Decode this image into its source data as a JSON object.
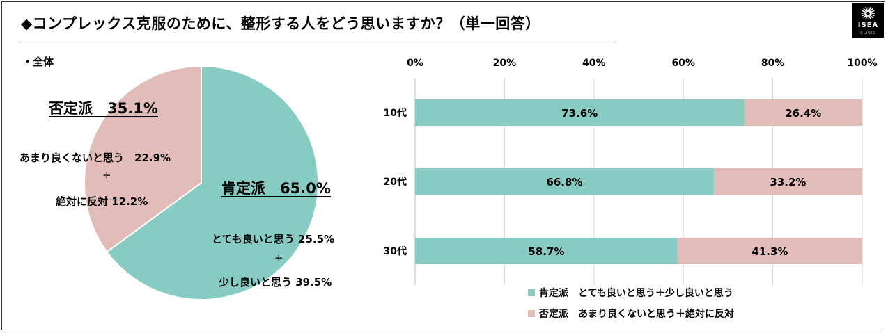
{
  "title": "◆コンプレックス克服のために、整形する人をどう思いますか？（単一回答）",
  "logo": {
    "brand": "ISEA",
    "sub": "CLINIC"
  },
  "colors": {
    "positive": "#88cbc3",
    "negative": "#e1bcb9",
    "grid": "#d9d9d9"
  },
  "chart_data": [
    {
      "type": "pie",
      "subtitle": "・全体",
      "slices": [
        {
          "name": "肯定派",
          "value": 65.0
        },
        {
          "name": "否定派",
          "value": 35.1
        }
      ],
      "labels": {
        "positive_title": "肯定派　65.0%",
        "positive_line1": "とても良いと思う 25.5%",
        "positive_plus": "+",
        "positive_line2": "少し良いと思う 39.5%",
        "negative_title": "否定派　35.1%",
        "negative_line1": "あまり良くないと思う　22.9%",
        "negative_plus": "+",
        "negative_line2": "絶対に反対 12.2%"
      }
    },
    {
      "type": "bar",
      "orientation": "horizontal",
      "stacked": true,
      "categories": [
        "10代",
        "20代",
        "30代"
      ],
      "series": [
        {
          "name": "肯定派　とても良いと思う＋少し良いと思う",
          "values": [
            73.6,
            66.8,
            58.7
          ],
          "labels": [
            "73.6%",
            "66.8%",
            "58.7%"
          ]
        },
        {
          "name": "否定派　あまり良くないと思う＋絶対に反対",
          "values": [
            26.4,
            33.2,
            41.3
          ],
          "labels": [
            "26.4%",
            "33.2%",
            "41.3%"
          ]
        }
      ],
      "xlim": [
        0,
        100
      ],
      "xticks": [
        0,
        20,
        40,
        60,
        80,
        100
      ],
      "xtick_labels": [
        "0%",
        "20%",
        "40%",
        "60%",
        "80%",
        "100%"
      ],
      "grid": true,
      "legend_position": "bottom"
    }
  ]
}
